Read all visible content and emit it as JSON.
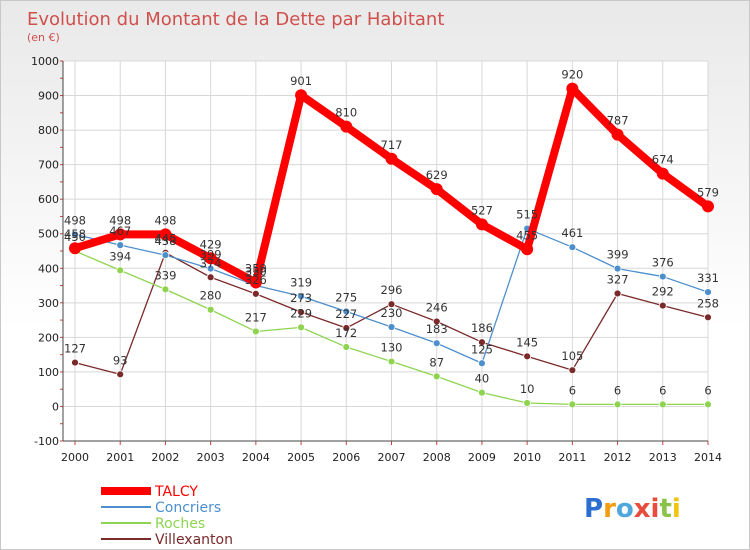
{
  "chart_data": {
    "type": "line",
    "title": "Evolution du Montant de la Dette par Habitant",
    "subtitle": "(en €)",
    "x": [
      "2000",
      "2001",
      "2002",
      "2003",
      "2004",
      "2005",
      "2006",
      "2007",
      "2008",
      "2009",
      "2010",
      "2011",
      "2012",
      "2013",
      "2014"
    ],
    "yticks": [
      1000,
      900,
      800,
      700,
      600,
      500,
      400,
      300,
      200,
      100,
      0,
      -100
    ],
    "ylim": [
      -100,
      1000
    ],
    "grid": true,
    "legend_position": "bottom-left",
    "series": [
      {
        "name": "TALCY",
        "color": "#ff0000",
        "values": [
          458,
          498,
          498,
          429,
          359,
          901,
          810,
          717,
          629,
          527,
          455,
          920,
          787,
          674,
          579
        ],
        "labels": [
          "458",
          "498",
          "498",
          "429",
          "359",
          "901",
          "810",
          "717",
          "629",
          "527",
          "455",
          "920",
          "787",
          "674",
          "579"
        ]
      },
      {
        "name": "Concriers",
        "color": "#4d8fcc",
        "values": [
          498,
          467,
          438,
          399,
          350,
          319,
          275,
          230,
          183,
          125,
          515,
          461,
          399,
          376,
          331
        ],
        "labels": [
          "498",
          "467",
          "438",
          "399",
          "350",
          "319",
          "275",
          "230",
          "183",
          "125",
          "515",
          "461",
          "399",
          "376",
          "331"
        ]
      },
      {
        "name": "Roches",
        "color": "#8ed450",
        "values": [
          450,
          394,
          339,
          280,
          217,
          229,
          172,
          130,
          87,
          40,
          10,
          6,
          6,
          6,
          6
        ],
        "labels": [
          "450",
          "394",
          "339",
          "280",
          "217",
          "229",
          "172",
          "130",
          "87",
          "40",
          "10",
          "6",
          "6",
          "6",
          "6"
        ]
      },
      {
        "name": "Villexanton",
        "color": "#7b2a2a",
        "values": [
          127,
          93,
          445,
          374,
          326,
          273,
          227,
          296,
          246,
          186,
          145,
          105,
          327,
          292,
          258
        ],
        "labels": [
          "127",
          "93",
          "445",
          "374",
          "326",
          "273",
          "227",
          "296",
          "246",
          "186",
          "145",
          "105",
          "327",
          "292",
          "258"
        ]
      }
    ]
  },
  "logo": {
    "text": "Proxiti",
    "letter_colors": [
      "#2c6fd1",
      "#f39c12",
      "#4ea8de",
      "#e74c3c",
      "#e74c3c",
      "#8bc34a",
      "#f1c40f"
    ]
  }
}
